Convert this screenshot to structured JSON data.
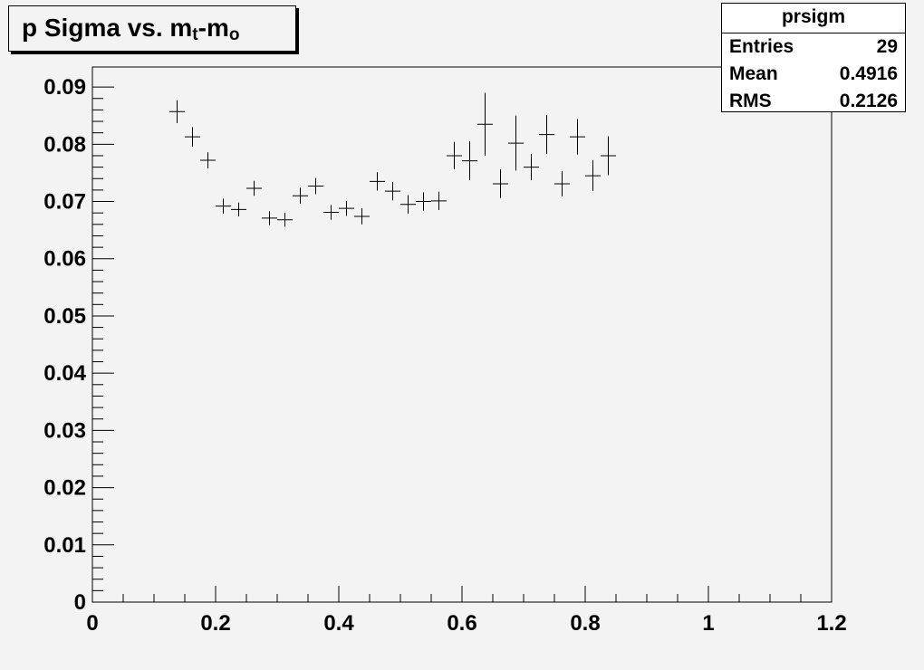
{
  "title": {
    "prefix": "p Sigma vs. m",
    "sub_t": "t",
    "mid": "-m",
    "sub_o": "o"
  },
  "stats": {
    "name": "prsigm",
    "rows": [
      {
        "label": "Entries",
        "value": "29"
      },
      {
        "label": "Mean",
        "value": "0.4916"
      },
      {
        "label": "RMS",
        "value": "0.2126"
      }
    ]
  },
  "chart_data": {
    "type": "scatter",
    "xlim": [
      0,
      1.2
    ],
    "ylim": [
      0,
      0.0935
    ],
    "xticks": [
      "0",
      "0.2",
      "0.4",
      "0.6",
      "0.8",
      "1",
      "1.2"
    ],
    "xtick_values": [
      0,
      0.2,
      0.4,
      0.6,
      0.8,
      1.0,
      1.2
    ],
    "yticks": [
      "0",
      "0.01",
      "0.02",
      "0.03",
      "0.04",
      "0.05",
      "0.06",
      "0.07",
      "0.08",
      "0.09"
    ],
    "ytick_values": [
      0,
      0.01,
      0.02,
      0.03,
      0.04,
      0.05,
      0.06,
      0.07,
      0.08,
      0.09
    ],
    "grid": false,
    "points": [
      {
        "x": 0.1375,
        "y": 0.0857,
        "err": 0.002
      },
      {
        "x": 0.1625,
        "y": 0.0813,
        "err": 0.0017
      },
      {
        "x": 0.1875,
        "y": 0.0772,
        "err": 0.0014
      },
      {
        "x": 0.2125,
        "y": 0.0692,
        "err": 0.0013
      },
      {
        "x": 0.2375,
        "y": 0.0686,
        "err": 0.0012
      },
      {
        "x": 0.2625,
        "y": 0.0723,
        "err": 0.0013
      },
      {
        "x": 0.2875,
        "y": 0.0671,
        "err": 0.0012
      },
      {
        "x": 0.3125,
        "y": 0.0668,
        "err": 0.0012
      },
      {
        "x": 0.3375,
        "y": 0.071,
        "err": 0.0014
      },
      {
        "x": 0.3625,
        "y": 0.0727,
        "err": 0.0014
      },
      {
        "x": 0.3875,
        "y": 0.0681,
        "err": 0.0013
      },
      {
        "x": 0.4125,
        "y": 0.0688,
        "err": 0.0013
      },
      {
        "x": 0.4375,
        "y": 0.0674,
        "err": 0.0014
      },
      {
        "x": 0.4625,
        "y": 0.0735,
        "err": 0.0016
      },
      {
        "x": 0.4875,
        "y": 0.0718,
        "err": 0.0016
      },
      {
        "x": 0.5125,
        "y": 0.0695,
        "err": 0.0016
      },
      {
        "x": 0.5375,
        "y": 0.07,
        "err": 0.0016
      },
      {
        "x": 0.5625,
        "y": 0.0701,
        "err": 0.0016
      },
      {
        "x": 0.5875,
        "y": 0.078,
        "err": 0.0024
      },
      {
        "x": 0.6125,
        "y": 0.0771,
        "err": 0.0034
      },
      {
        "x": 0.6375,
        "y": 0.0835,
        "err": 0.0055
      },
      {
        "x": 0.6625,
        "y": 0.0731,
        "err": 0.0025
      },
      {
        "x": 0.6875,
        "y": 0.0802,
        "err": 0.0048
      },
      {
        "x": 0.7125,
        "y": 0.076,
        "err": 0.0023
      },
      {
        "x": 0.7375,
        "y": 0.0817,
        "err": 0.0034
      },
      {
        "x": 0.7625,
        "y": 0.0731,
        "err": 0.0022
      },
      {
        "x": 0.7875,
        "y": 0.0813,
        "err": 0.0031
      },
      {
        "x": 0.8125,
        "y": 0.0745,
        "err": 0.0027
      },
      {
        "x": 0.8375,
        "y": 0.078,
        "err": 0.0034
      }
    ]
  }
}
